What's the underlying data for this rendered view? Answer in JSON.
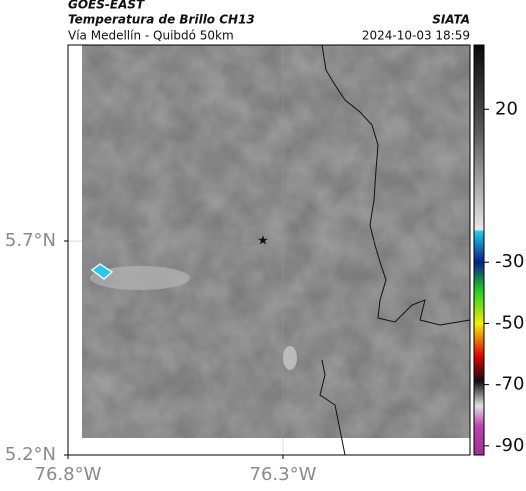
{
  "header": {
    "satellite": "GOES-EAST",
    "product": "Temperatura de Brillo CH13",
    "route": "Vía Medellín - Quibdó 50km",
    "source": "SIATA",
    "datetime": "2024-10-03 18:59"
  },
  "map": {
    "xlim": [
      -76.8,
      -75.865
    ],
    "ylim": [
      5.2,
      6.158
    ],
    "xticks": [
      {
        "value": -76.8,
        "label": "76.8°W"
      },
      {
        "value": -76.3,
        "label": "76.3°W"
      }
    ],
    "yticks": [
      {
        "value": 5.7,
        "label": "5.7°N"
      },
      {
        "value": 5.2,
        "label": "5.2°N"
      }
    ]
  },
  "colorbar": {
    "ylim": [
      -93,
      41
    ],
    "yticks": [
      20,
      -30,
      -50,
      -70,
      -90
    ]
  }
}
